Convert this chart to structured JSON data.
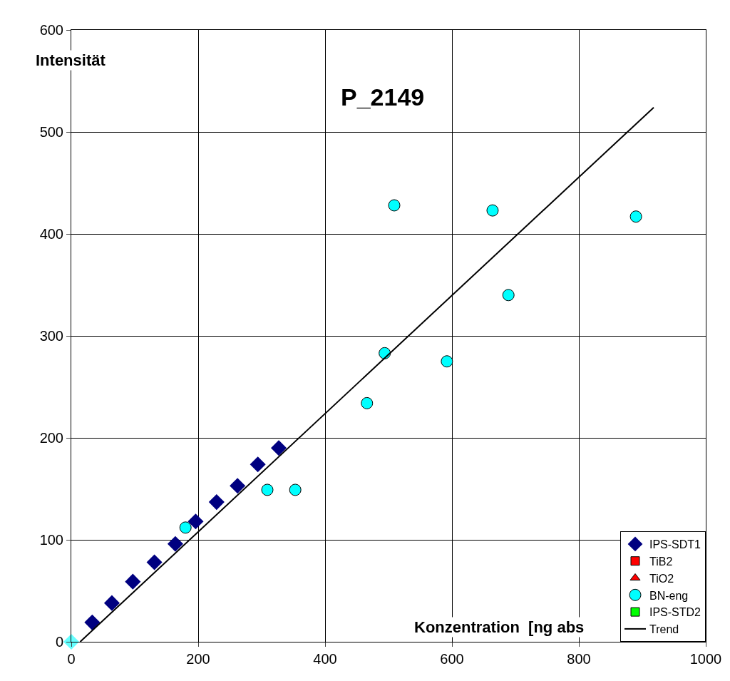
{
  "chart_data": {
    "type": "scatter",
    "title": "P_2149",
    "xlabel": "Konzentration  [ng abs",
    "ylabel": "Intensität",
    "xlim": [
      0,
      1000
    ],
    "xticks": [
      0,
      200,
      400,
      600,
      800,
      1000
    ],
    "ylim": [
      0,
      600
    ],
    "yticks": [
      0,
      100,
      200,
      300,
      400,
      500,
      600
    ],
    "grid": true,
    "legend": "bottom right",
    "series": [
      {
        "name": "IPS-SDT1",
        "color": "#000080",
        "marker": "diamond",
        "x": [
          33,
          64,
          97,
          131,
          164,
          196,
          229,
          262,
          294,
          327
        ],
        "values": [
          19,
          38,
          59,
          78,
          96,
          118,
          137,
          153,
          174,
          190
        ]
      },
      {
        "name": "TiB2",
        "color": "#ff0000",
        "marker": "square"
      },
      {
        "name": "TiO2",
        "color": "#ff0000",
        "marker": "triangle"
      },
      {
        "name": "BN-eng",
        "color": "#00ffff",
        "marker": "circle",
        "x": [
          180,
          309,
          353,
          466,
          494,
          509,
          592,
          664,
          689,
          890
        ],
        "values": [
          112,
          149,
          149,
          234,
          283,
          428,
          275,
          423,
          340,
          417
        ]
      },
      {
        "name": "IPS-STD2",
        "color": "#00ff00",
        "marker": "square"
      },
      {
        "color": "#66ffff",
        "marker": "diamond",
        "x": [
          0
        ],
        "values": [
          0
        ]
      },
      {
        "name": "Trend",
        "type": "line",
        "color": "#000000",
        "marker": "none",
        "x": [
          14,
          918
        ],
        "values": [
          0,
          524
        ]
      }
    ]
  }
}
